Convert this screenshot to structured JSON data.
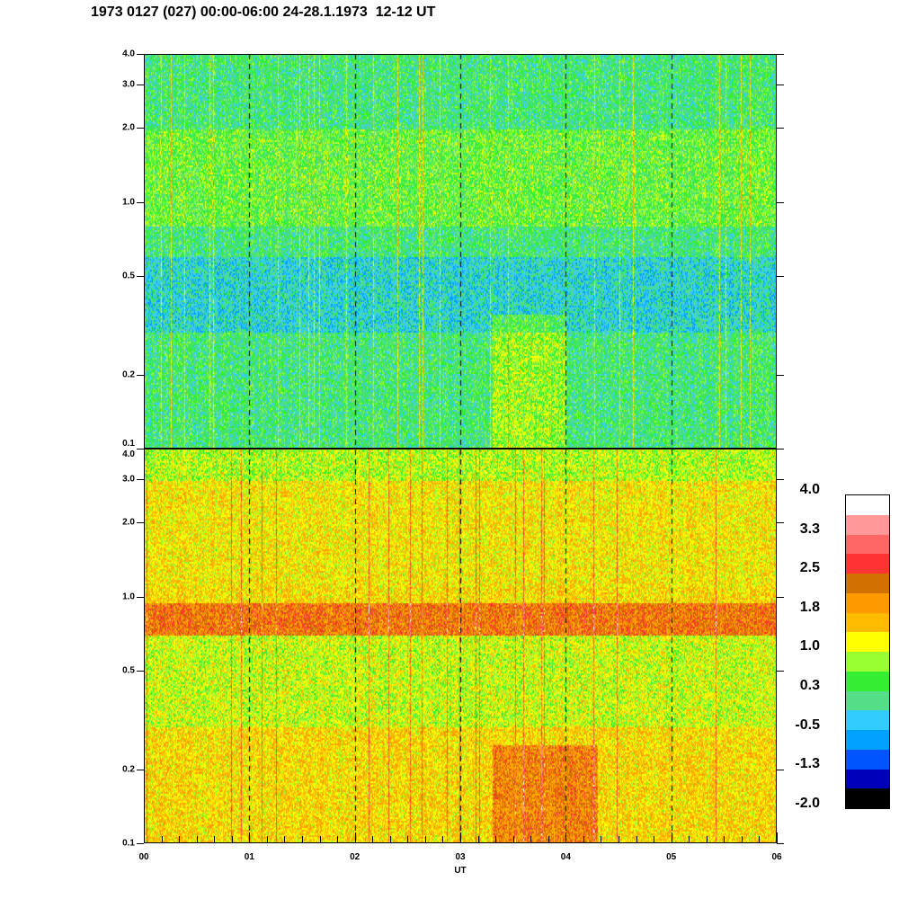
{
  "title": "1973 0127 (027) 00:00-06:00 24-28.1.1973  12-12 UT",
  "chart_data": {
    "type": "heatmap",
    "title": "1973 0127 (027) 00:00-06:00 24-28.1.1973  12-12 UT",
    "xlabel": "UT",
    "x_ticks": [
      "00",
      "01",
      "02",
      "03",
      "04",
      "05",
      "06"
    ],
    "xlim": [
      0,
      6
    ],
    "panels": [
      {
        "name": "upper",
        "y_scale": "log",
        "ylim": [
          0.1,
          4.0
        ],
        "y_ticks": [
          "4.0",
          "3.0",
          "2.0",
          "1.0",
          "0.5",
          "0.2",
          "0.1"
        ],
        "y_tick_values": [
          4.0,
          3.0,
          2.0,
          1.0,
          0.5,
          0.2,
          0.1
        ],
        "typical_level": 0.3
      },
      {
        "name": "lower",
        "y_scale": "log",
        "ylim": [
          0.1,
          4.0
        ],
        "y_ticks": [
          "4.0",
          "3.0",
          "2.0",
          "1.0",
          "0.5",
          "0.2",
          "0.1"
        ],
        "y_tick_values": [
          4.0,
          3.0,
          2.0,
          1.0,
          0.5,
          0.2,
          0.1
        ],
        "typical_level": 1.5
      }
    ],
    "colorbar": {
      "labels": [
        "4.0",
        "3.3",
        "2.5",
        "1.8",
        "1.0",
        "0.3",
        "-0.5",
        "-1.3",
        "-2.0"
      ],
      "range": [
        -2.0,
        4.0
      ],
      "colors": [
        "#ffffff",
        "#ff9999",
        "#ff6666",
        "#ff3333",
        "#d27000",
        "#ff9900",
        "#ffbb00",
        "#ffff00",
        "#99ff33",
        "#33ee33",
        "#55dd88",
        "#33ccff",
        "#00a0ff",
        "#0055ff",
        "#0000bb",
        "#000000"
      ]
    }
  }
}
